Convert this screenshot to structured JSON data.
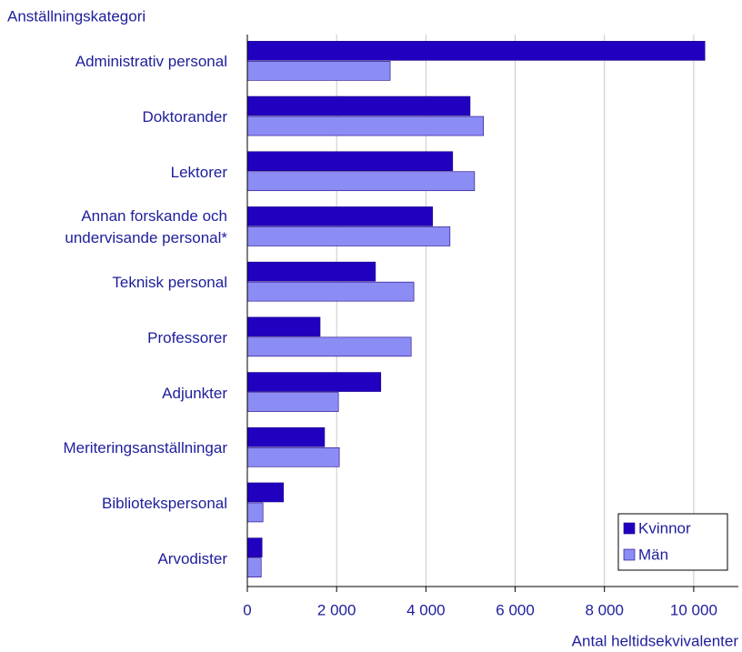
{
  "chart_data": {
    "type": "bar",
    "orientation": "horizontal",
    "title": "Anställningskategori",
    "x_label": "Antal heltidsekvivalenter",
    "categories": [
      "Administrativ personal",
      "Doktorander",
      "Lektorer",
      "Annan forskande och undervisande personal*",
      "Teknisk personal",
      "Professorer",
      "Adjunkter",
      "Meriteringsanställningar",
      "Bibliotekspersonal",
      "Arvodister"
    ],
    "series": [
      {
        "name": "Kvinnor",
        "color": "#2200c0",
        "values": [
          10250,
          4990,
          4600,
          4150,
          2870,
          1630,
          2990,
          1730,
          810,
          330
        ]
      },
      {
        "name": "Män",
        "color": "#8c8cf5",
        "values": [
          3200,
          5290,
          5090,
          4540,
          3730,
          3670,
          2040,
          2060,
          350,
          310
        ]
      }
    ],
    "xlim": [
      0,
      11000
    ],
    "xticks": [
      0,
      {
        "value": 2000,
        "label": "2 000"
      },
      {
        "value": 4000,
        "label": "4 000"
      },
      {
        "value": 6000,
        "label": "6 000"
      },
      {
        "value": 8000,
        "label": "8 000"
      },
      {
        "value": 10000,
        "label": "10 000"
      }
    ],
    "grid": true,
    "legend": "lower right"
  }
}
